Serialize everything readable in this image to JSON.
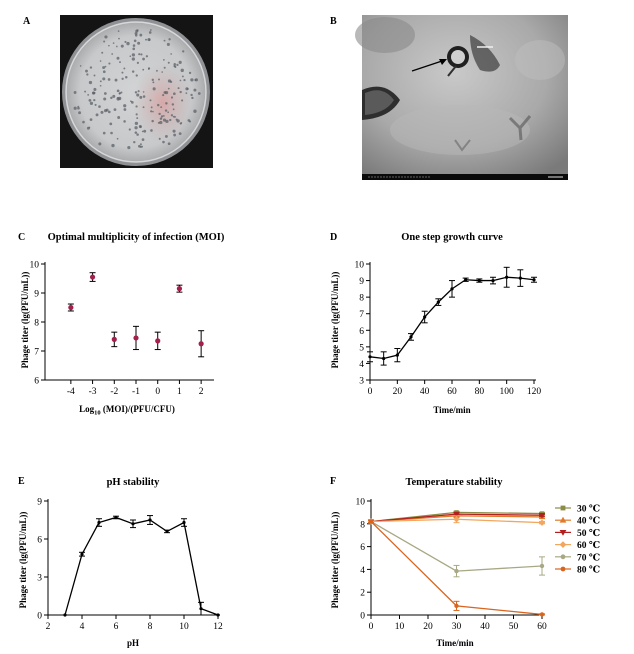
{
  "panels": {
    "A": {
      "label": "A"
    },
    "B": {
      "label": "B"
    },
    "C": {
      "label": "C"
    },
    "D": {
      "label": "D"
    },
    "E": {
      "label": "E"
    },
    "F": {
      "label": "F"
    }
  },
  "chart_data": [
    {
      "id": "C",
      "type": "scatter",
      "title": "Optimal multiplicity of infection (MOI)",
      "xlabel_prefix": "Log",
      "xlabel_sub": "10",
      "xlabel_suffix": " (MOI)/(PFU/CFU)",
      "ylabel": "Phage titer (lg(PFU/mL))",
      "xlim": [
        -4.5,
        2.5
      ],
      "ylim": [
        6,
        10
      ],
      "xticks": [
        -4,
        -3,
        -2,
        -1,
        0,
        1,
        2
      ],
      "yticks": [
        6,
        7,
        8,
        9,
        10
      ],
      "x": [
        -4,
        -3,
        -2,
        -1,
        0,
        1,
        2
      ],
      "y": [
        8.5,
        9.55,
        7.4,
        7.45,
        7.35,
        9.15,
        7.25
      ],
      "err": [
        0.12,
        0.15,
        0.25,
        0.4,
        0.3,
        0.12,
        0.45
      ],
      "color": "#a3204a"
    },
    {
      "id": "D",
      "type": "line",
      "title": "One step growth curve",
      "xlabel": "Time/min",
      "ylabel": "Phage titer (lg(PFU/mL))",
      "xlim": [
        0,
        120
      ],
      "ylim": [
        3,
        10
      ],
      "xticks": [
        0,
        20,
        40,
        60,
        80,
        100,
        120
      ],
      "yticks": [
        3,
        4,
        5,
        6,
        7,
        8,
        9,
        10
      ],
      "x": [
        0,
        10,
        20,
        30,
        40,
        50,
        60,
        70,
        80,
        90,
        100,
        110,
        120
      ],
      "y": [
        4.4,
        4.3,
        4.5,
        5.6,
        6.8,
        7.7,
        8.5,
        9.05,
        9.0,
        9.0,
        9.2,
        9.15,
        9.05
      ],
      "err": [
        0.3,
        0.4,
        0.4,
        0.2,
        0.35,
        0.2,
        0.5,
        0.1,
        0.1,
        0.2,
        0.6,
        0.5,
        0.15
      ],
      "color": "#000000"
    },
    {
      "id": "E",
      "type": "line",
      "title": "pH stability",
      "xlabel": "pH",
      "ylabel": "Phage titer (lg(PFU/mL))",
      "xlim": [
        2,
        12
      ],
      "ylim": [
        0,
        9
      ],
      "xticks": [
        2,
        4,
        6,
        8,
        10,
        12
      ],
      "yticks": [
        0,
        3,
        6,
        9
      ],
      "x": [
        3,
        4,
        5,
        6,
        7,
        8,
        9,
        10,
        11,
        12
      ],
      "y": [
        0,
        4.8,
        7.3,
        7.7,
        7.2,
        7.5,
        6.6,
        7.3,
        0.5,
        0
      ],
      "err": [
        0,
        0.15,
        0.3,
        0.1,
        0.3,
        0.35,
        0.1,
        0.3,
        0.5,
        0
      ],
      "color": "#000000"
    },
    {
      "id": "F",
      "type": "line",
      "title": "Temperature stability",
      "xlabel": "Time/min",
      "ylabel": "Phage titer (lg(PFU/mL))",
      "xlim": [
        0,
        60
      ],
      "ylim": [
        0,
        10
      ],
      "xticks": [
        0,
        10,
        20,
        30,
        40,
        50,
        60
      ],
      "yticks": [
        0,
        2,
        4,
        6,
        8,
        10
      ],
      "x": [
        0,
        30,
        60
      ],
      "series": [
        {
          "name": "30 ℃",
          "values": [
            8.2,
            9.0,
            8.9
          ],
          "err": [
            0.1,
            0.1,
            0.1
          ],
          "color": "#8c8c46",
          "marker": "square"
        },
        {
          "name": "40 ℃",
          "values": [
            8.2,
            8.7,
            8.6
          ],
          "err": [
            0.1,
            0.1,
            0.1
          ],
          "color": "#e07b2c",
          "marker": "triangle"
        },
        {
          "name": "50 ℃",
          "values": [
            8.2,
            8.85,
            8.75
          ],
          "err": [
            0.1,
            0.15,
            0.1
          ],
          "color": "#b21f1f",
          "marker": "triangle-down"
        },
        {
          "name": "60 ℃",
          "values": [
            8.2,
            8.4,
            8.1
          ],
          "err": [
            0.1,
            0.3,
            0.1
          ],
          "color": "#f2a65e",
          "marker": "diamond"
        },
        {
          "name": "70 ℃",
          "values": [
            8.2,
            3.85,
            4.3
          ],
          "err": [
            0.1,
            0.5,
            0.8
          ],
          "color": "#a8a884",
          "marker": "circle"
        },
        {
          "name": "80 ℃",
          "values": [
            8.2,
            0.8,
            0.05
          ],
          "err": [
            0.1,
            0.4,
            0.05
          ],
          "color": "#d9641e",
          "marker": "circle"
        }
      ]
    }
  ]
}
